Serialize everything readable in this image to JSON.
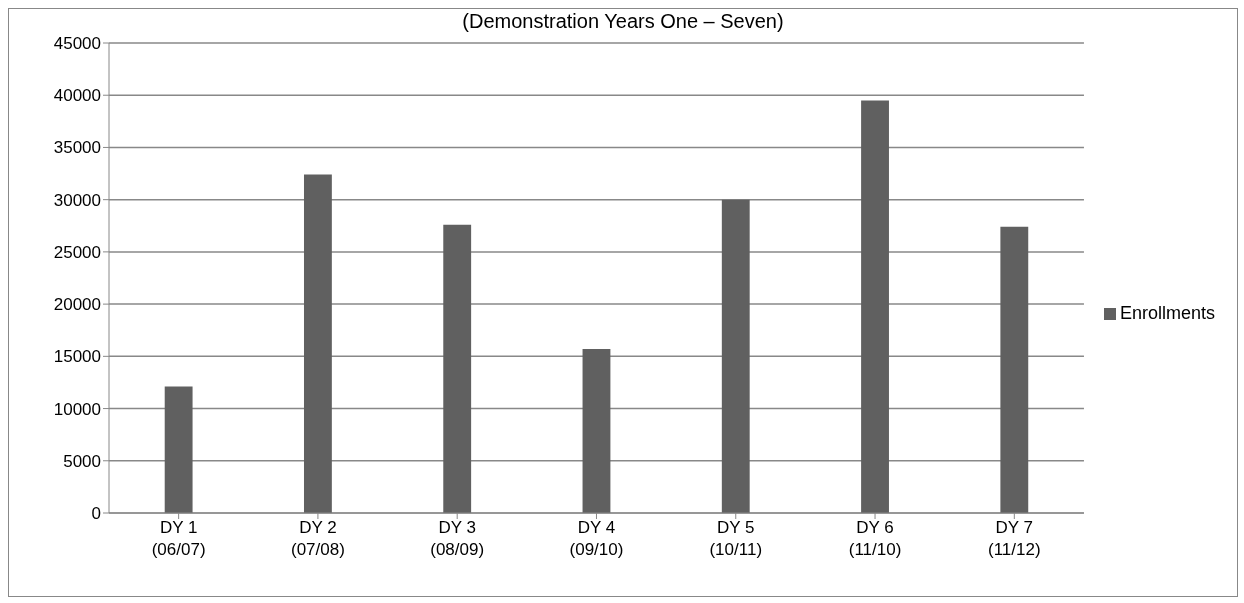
{
  "chart_data": {
    "type": "bar",
    "title": "(Demonstration Years One – Seven)",
    "categories": [
      "DY 1\n(06/07)",
      "DY 2\n(07/08)",
      "DY 3\n(08/09)",
      "DY 4\n(09/10)",
      "DY 5\n(10/11)",
      "DY 6\n(11/10)",
      "DY 7\n(11/12)"
    ],
    "series": [
      {
        "name": "Enrollments",
        "color": "#606060",
        "values": [
          12100,
          32400,
          27600,
          15700,
          30000,
          39500,
          27400
        ]
      }
    ],
    "ylim": [
      0,
      45000
    ],
    "yticks": [
      0,
      5000,
      10000,
      15000,
      20000,
      25000,
      30000,
      35000,
      40000,
      45000
    ],
    "grid": "y",
    "legend": "right"
  }
}
